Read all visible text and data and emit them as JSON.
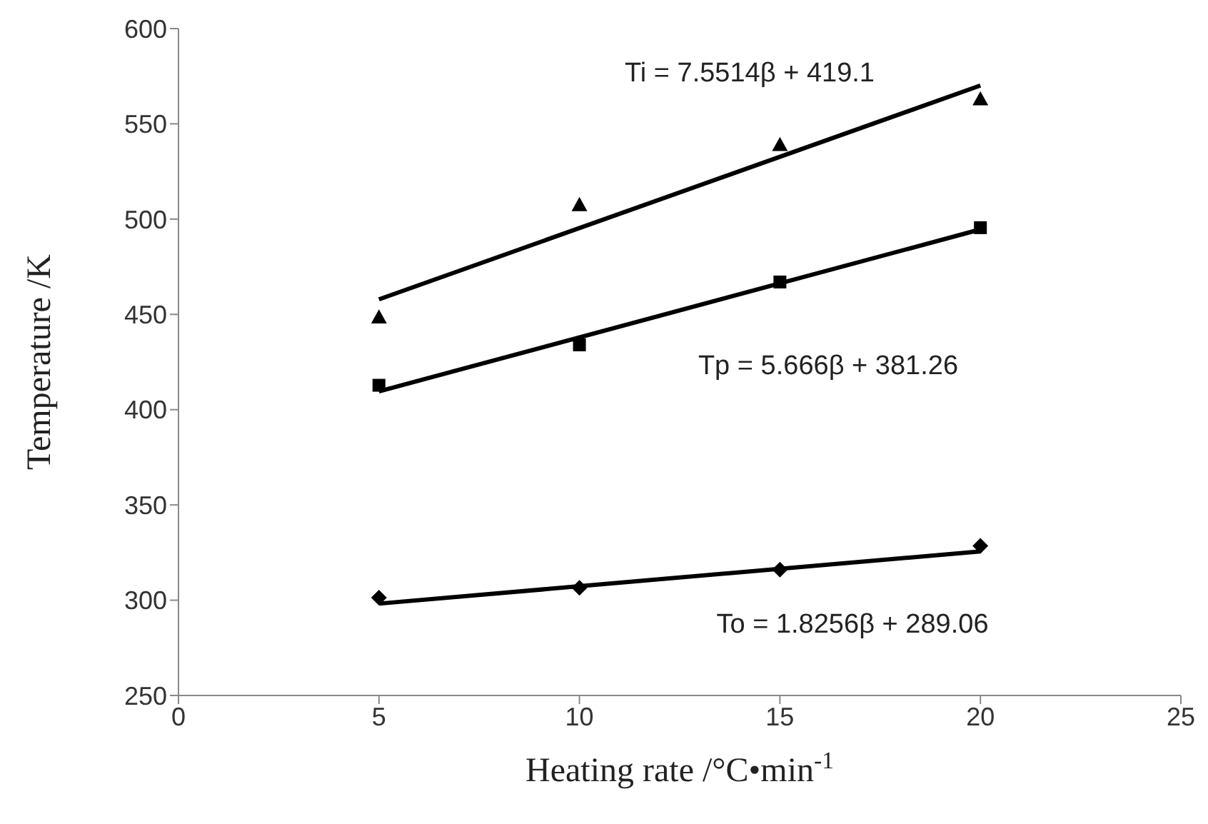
{
  "chart_data": {
    "type": "scatter",
    "xlabel": "Heating rate /°C•min$^{-1}$",
    "ylabel": "Temperature /K",
    "xlim": [
      0,
      25
    ],
    "xticks": [
      0,
      5,
      10,
      15,
      20,
      25
    ],
    "ylim": [
      250,
      600
    ],
    "yticks": [
      250,
      300,
      350,
      400,
      450,
      500,
      550,
      600
    ],
    "grid": false,
    "legend": false,
    "series": [
      {
        "marker": "triangle",
        "color": "#000000",
        "x": [
          5,
          10,
          15,
          20
        ],
        "values": [
          448.5,
          507.5,
          539,
          563
        ]
      },
      {
        "marker": "square",
        "color": "#000000",
        "x": [
          5,
          10,
          15,
          20
        ],
        "values": [
          412.8,
          434,
          467,
          495.5
        ]
      },
      {
        "marker": "diamond",
        "color": "#000000",
        "x": [
          5,
          10,
          15,
          20
        ],
        "values": [
          301.3,
          306.5,
          316,
          328.5
        ]
      },
      {
        "type": "line",
        "marker": "none",
        "line_style": "solid",
        "color": "#000000",
        "x": [
          5,
          20
        ],
        "values": [
          457.9,
          570.1
        ]
      },
      {
        "type": "line",
        "marker": "none",
        "line_style": "solid",
        "color": "#000000",
        "x": [
          5,
          20
        ],
        "values": [
          409.6,
          494.6
        ]
      },
      {
        "type": "line",
        "marker": "none",
        "line_style": "solid",
        "color": "#000000",
        "x": [
          5,
          20
        ],
        "values": [
          298.2,
          325.6
        ]
      }
    ],
    "annotations": [
      "Ti = 7.5514β + 419.1",
      "Tp = 5.666β + 381.26",
      "To = 1.8256β + 289.06"
    ]
  }
}
